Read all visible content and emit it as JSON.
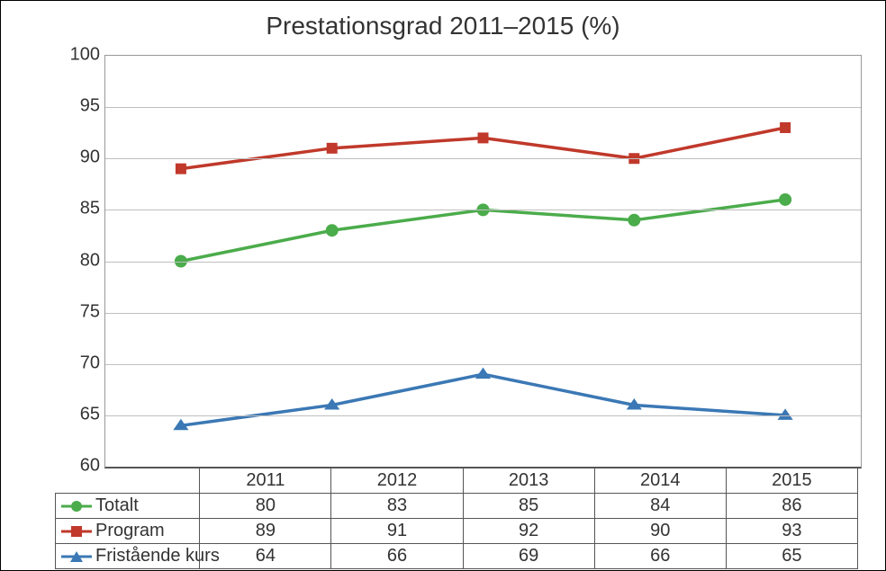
{
  "chart": {
    "type": "line",
    "title": "Prestationsgrad 2011–2015 (%)",
    "title_fontsize": 28,
    "title_color": "#333333",
    "background_color": "#ffffff",
    "border_color": "#000000",
    "plot_border_color": "#999999",
    "grid_color": "#bfbfbf",
    "axis_baseline_color": "#555555",
    "tick_fontsize": 20,
    "tick_color": "#333333",
    "x": {
      "categories": [
        "2011",
        "2012",
        "2013",
        "2014",
        "2015"
      ]
    },
    "y": {
      "min": 60,
      "max": 100,
      "tick_step": 5,
      "ticks": [
        60,
        65,
        70,
        75,
        80,
        85,
        90,
        95,
        100
      ]
    },
    "series": [
      {
        "id": "totalt",
        "label": "Totalt",
        "values": [
          80,
          83,
          85,
          84,
          86
        ],
        "color": "#4bac4b",
        "marker": "circle",
        "marker_size": 13,
        "line_width": 3.5
      },
      {
        "id": "program",
        "label": "Program",
        "values": [
          89,
          91,
          92,
          90,
          93
        ],
        "color": "#c0392b",
        "marker": "square",
        "marker_size": 12,
        "line_width": 3.5
      },
      {
        "id": "fristaende",
        "label": "Fristående kurs",
        "values": [
          64,
          66,
          69,
          66,
          65
        ],
        "color": "#3b78b5",
        "marker": "triangle",
        "marker_size": 12,
        "line_width": 3.5
      }
    ],
    "table": {
      "font_size": 20,
      "border_color": "#555555",
      "legend_col_width_pct": 18
    }
  }
}
